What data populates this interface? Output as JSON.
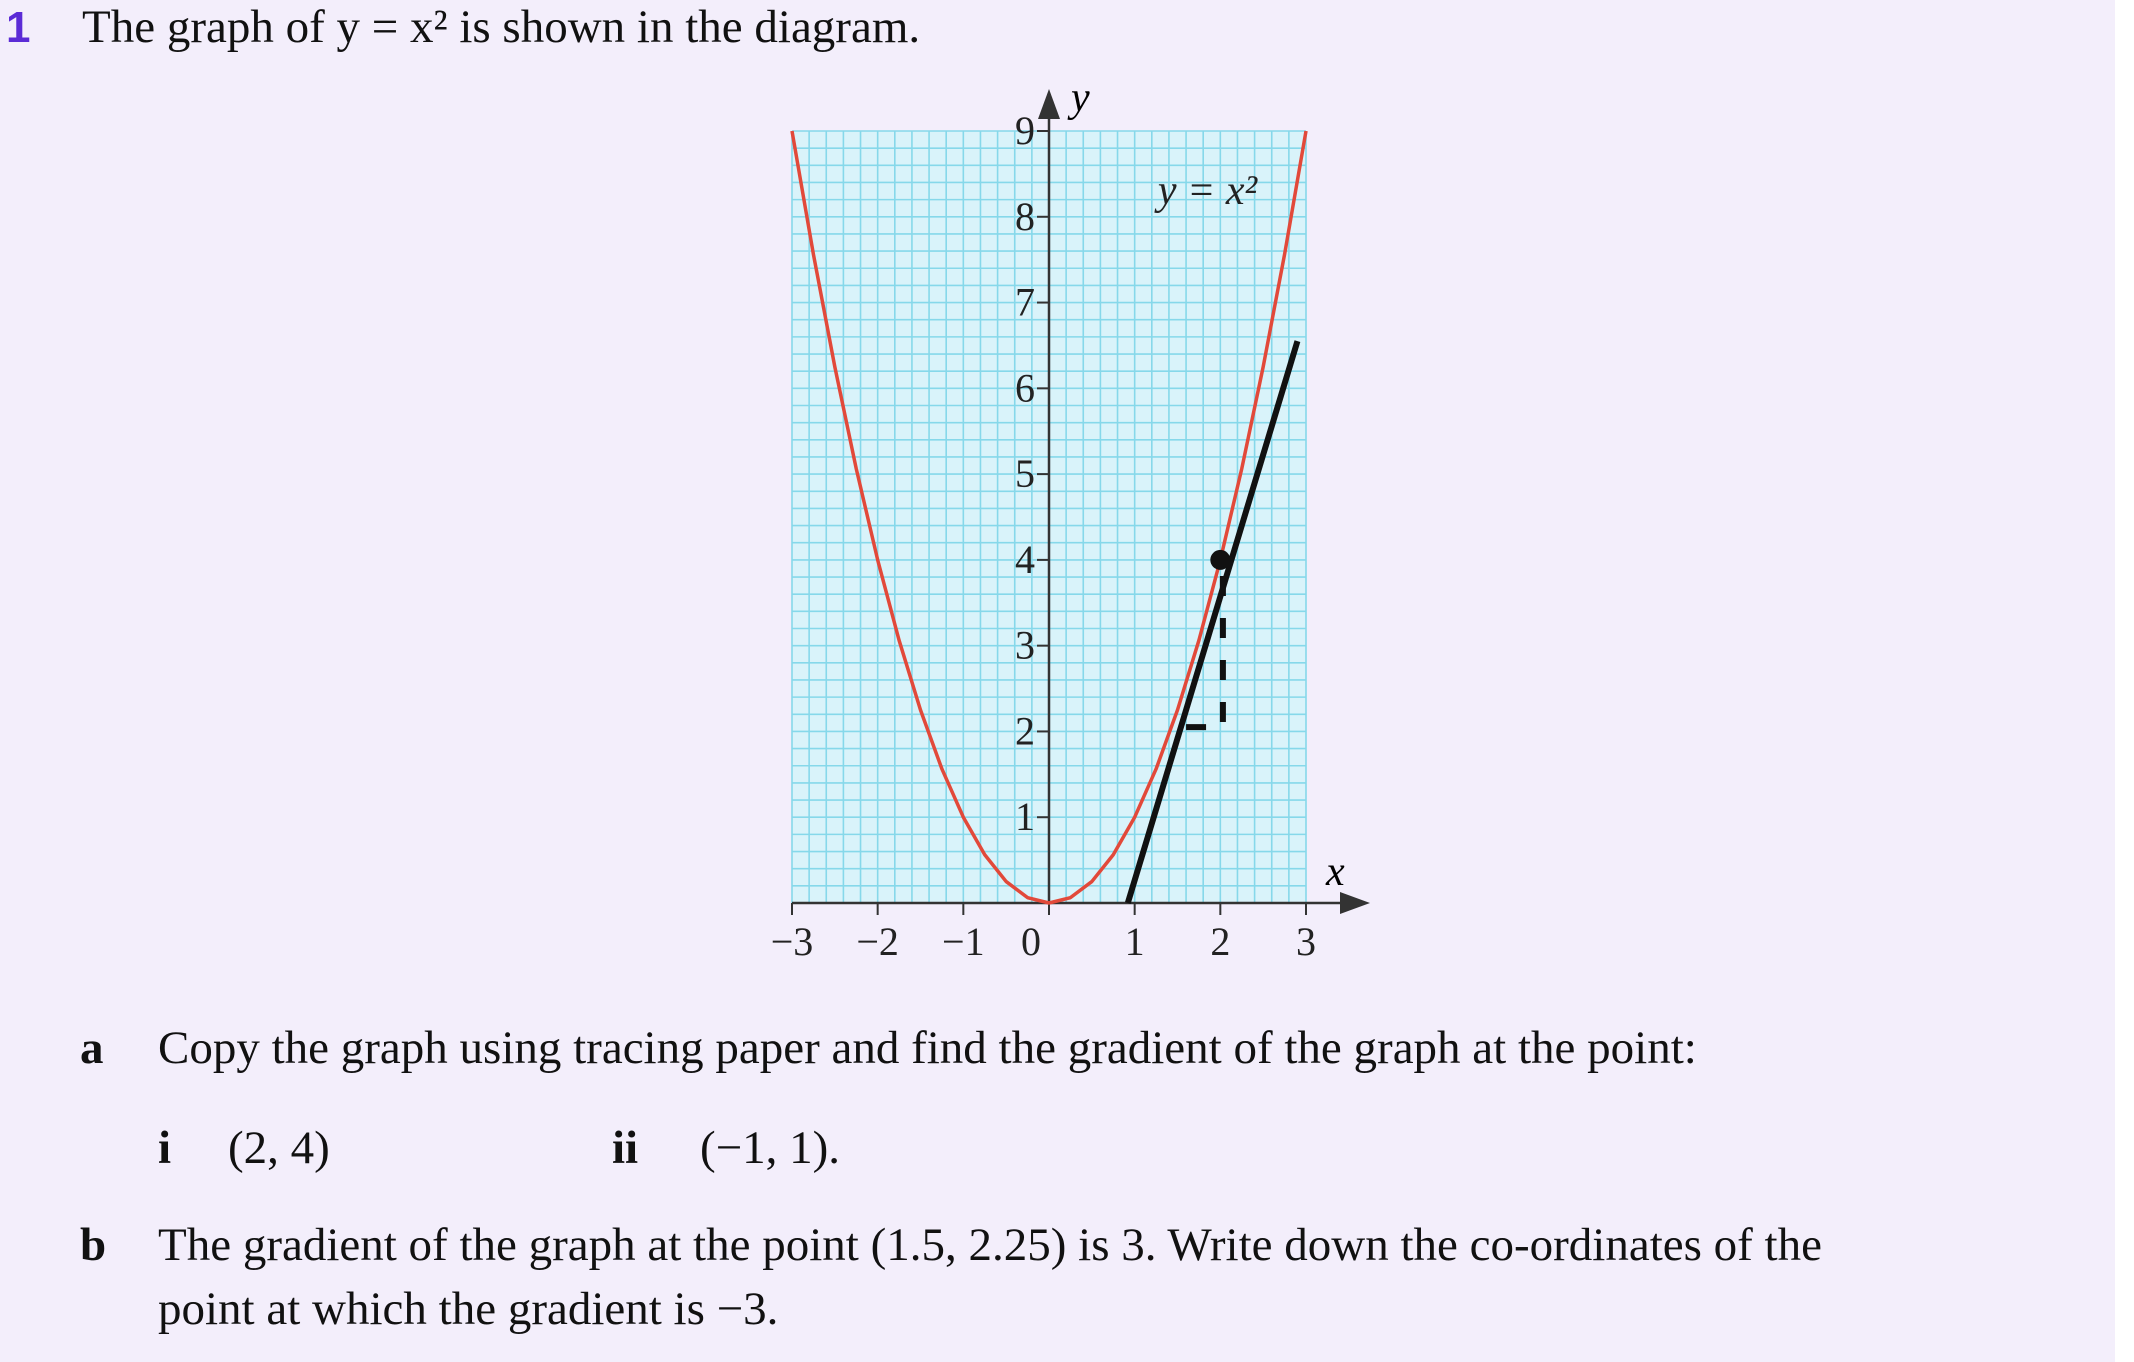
{
  "question": {
    "number": "1",
    "text": "The graph of y = x² is shown in the diagram."
  },
  "chart_data": {
    "type": "line",
    "xlabel": "x",
    "ylabel": "y",
    "xlim": [
      -3,
      3
    ],
    "ylim": [
      0,
      9
    ],
    "xticks": [
      {
        "value": -3,
        "label": "−3"
      },
      {
        "value": -2,
        "label": "−2"
      },
      {
        "value": -1,
        "label": "−1"
      },
      0,
      1,
      2,
      3
    ],
    "yticks": [
      1,
      2,
      3,
      4,
      5,
      6,
      7,
      8,
      9
    ],
    "grid": true,
    "grid_step": 0.2,
    "grid_color": "#86d8ea",
    "background": "#d9f3fa",
    "series": [
      {
        "name": "y = x²",
        "color": "#e2493a",
        "x": [
          -3,
          -2.75,
          -2.5,
          -2.25,
          -2,
          -1.75,
          -1.5,
          -1.25,
          -1,
          -0.75,
          -0.5,
          -0.25,
          0,
          0.25,
          0.5,
          0.75,
          1,
          1.25,
          1.5,
          1.75,
          2,
          2.25,
          2.5,
          2.75,
          3
        ],
        "values": [
          9,
          7.5625,
          6.25,
          5.0625,
          4,
          3.0625,
          2.25,
          1.5625,
          1,
          0.5625,
          0.25,
          0.0625,
          0,
          0.0625,
          0.25,
          0.5625,
          1,
          1.5625,
          2.25,
          3.0625,
          4,
          5.0625,
          6.25,
          7.5625,
          9
        ]
      },
      {
        "color": "#111111",
        "x": [
          0.92,
          2.9
        ],
        "values": [
          0,
          6.55
        ]
      },
      {
        "color": "#111111",
        "dashed": true,
        "x": [
          1.6,
          2.03,
          2.03
        ],
        "values": [
          2.05,
          2.05,
          4
        ]
      }
    ],
    "points": [
      {
        "x": 2,
        "y": 4,
        "color": "#111111"
      }
    ]
  },
  "parts": [
    {
      "label": "a",
      "text": "Copy the graph using tracing paper and find the gradient of the graph at the point:",
      "subparts": [
        {
          "label": "i",
          "text": "(2, 4)"
        },
        {
          "label": "ii",
          "text": "(−1, 1)."
        }
      ]
    },
    {
      "label": "b",
      "lines": [
        "The gradient of the graph at the point (1.5, 2.25) is 3. Write down the co-ordinates of the",
        "point at which the gradient is −3."
      ]
    }
  ]
}
